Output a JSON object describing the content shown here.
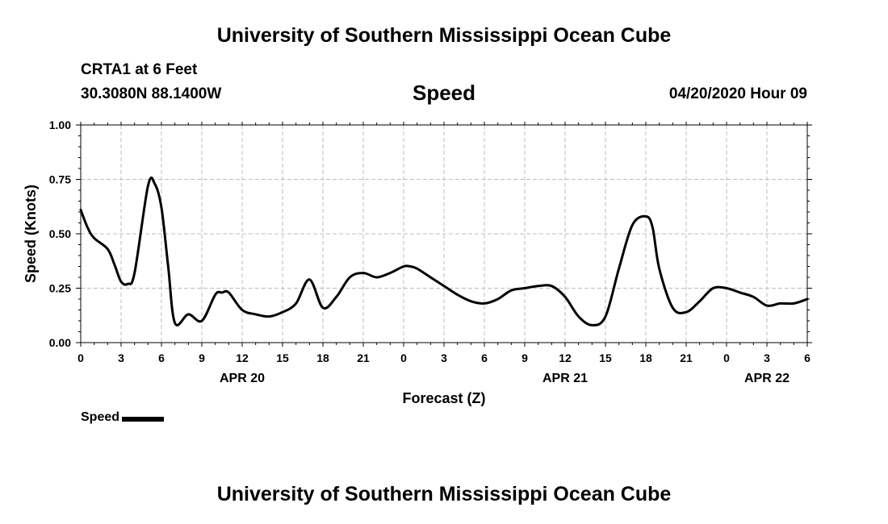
{
  "header": {
    "title": "University of Southern Mississippi Ocean Cube",
    "station": "CRTA1 at 6 Feet",
    "coords": "30.3080N 88.1400W",
    "parameter": "Speed",
    "datetime": "04/20/2020 Hour 09"
  },
  "footer": {
    "title": "University of Southern Mississippi Ocean Cube"
  },
  "legend": {
    "label": "Speed"
  },
  "chart_data": {
    "type": "line",
    "title": "Speed",
    "xlabel": "Forecast (Z)",
    "ylabel": "Speed (Knots)",
    "ylim": [
      0,
      1
    ],
    "xlim": [
      0,
      54
    ],
    "grid": true,
    "legend_position": "bottom-left",
    "line_color": "#000000",
    "y_ticks": [
      "0.00",
      "0.25",
      "0.50",
      "0.75",
      "1.00"
    ],
    "x_ticks": [
      {
        "h": 0,
        "label": "0"
      },
      {
        "h": 3,
        "label": "3"
      },
      {
        "h": 6,
        "label": "6"
      },
      {
        "h": 9,
        "label": "9"
      },
      {
        "h": 12,
        "label": "12"
      },
      {
        "h": 15,
        "label": "15"
      },
      {
        "h": 18,
        "label": "18"
      },
      {
        "h": 21,
        "label": "21"
      },
      {
        "h": 24,
        "label": "0"
      },
      {
        "h": 27,
        "label": "3"
      },
      {
        "h": 30,
        "label": "6"
      },
      {
        "h": 33,
        "label": "9"
      },
      {
        "h": 36,
        "label": "12"
      },
      {
        "h": 39,
        "label": "15"
      },
      {
        "h": 42,
        "label": "18"
      },
      {
        "h": 45,
        "label": "21"
      },
      {
        "h": 48,
        "label": "0"
      },
      {
        "h": 51,
        "label": "3"
      },
      {
        "h": 54,
        "label": "6"
      }
    ],
    "date_labels": [
      {
        "h": 12,
        "label": "APR 20"
      },
      {
        "h": 36,
        "label": "APR 21"
      },
      {
        "h": 51,
        "label": "APR 22"
      }
    ],
    "series": [
      {
        "name": "Speed",
        "x": [
          0,
          0.5,
          1,
          2,
          2.5,
          3,
          3.5,
          4,
          5,
          5.5,
          6,
          6.5,
          7,
          8,
          9,
          10,
          10.5,
          11,
          12,
          13,
          14,
          15,
          16,
          17,
          18,
          19,
          20,
          21,
          22,
          23,
          24,
          24.5,
          25,
          26,
          27,
          28,
          29,
          30,
          31,
          32,
          33,
          34,
          35,
          36,
          37,
          38,
          39,
          40,
          41,
          42,
          42.5,
          43,
          44,
          45,
          46,
          47,
          48,
          49,
          50,
          51,
          52,
          53,
          54
        ],
        "values": [
          0.61,
          0.53,
          0.48,
          0.43,
          0.36,
          0.28,
          0.27,
          0.32,
          0.72,
          0.73,
          0.62,
          0.35,
          0.09,
          0.13,
          0.1,
          0.22,
          0.23,
          0.23,
          0.15,
          0.13,
          0.12,
          0.14,
          0.18,
          0.29,
          0.16,
          0.21,
          0.3,
          0.32,
          0.3,
          0.32,
          0.35,
          0.35,
          0.34,
          0.3,
          0.26,
          0.22,
          0.19,
          0.18,
          0.2,
          0.24,
          0.25,
          0.26,
          0.26,
          0.21,
          0.12,
          0.08,
          0.12,
          0.34,
          0.54,
          0.58,
          0.53,
          0.34,
          0.16,
          0.14,
          0.19,
          0.25,
          0.25,
          0.23,
          0.21,
          0.17,
          0.18,
          0.18,
          0.2
        ]
      }
    ]
  }
}
